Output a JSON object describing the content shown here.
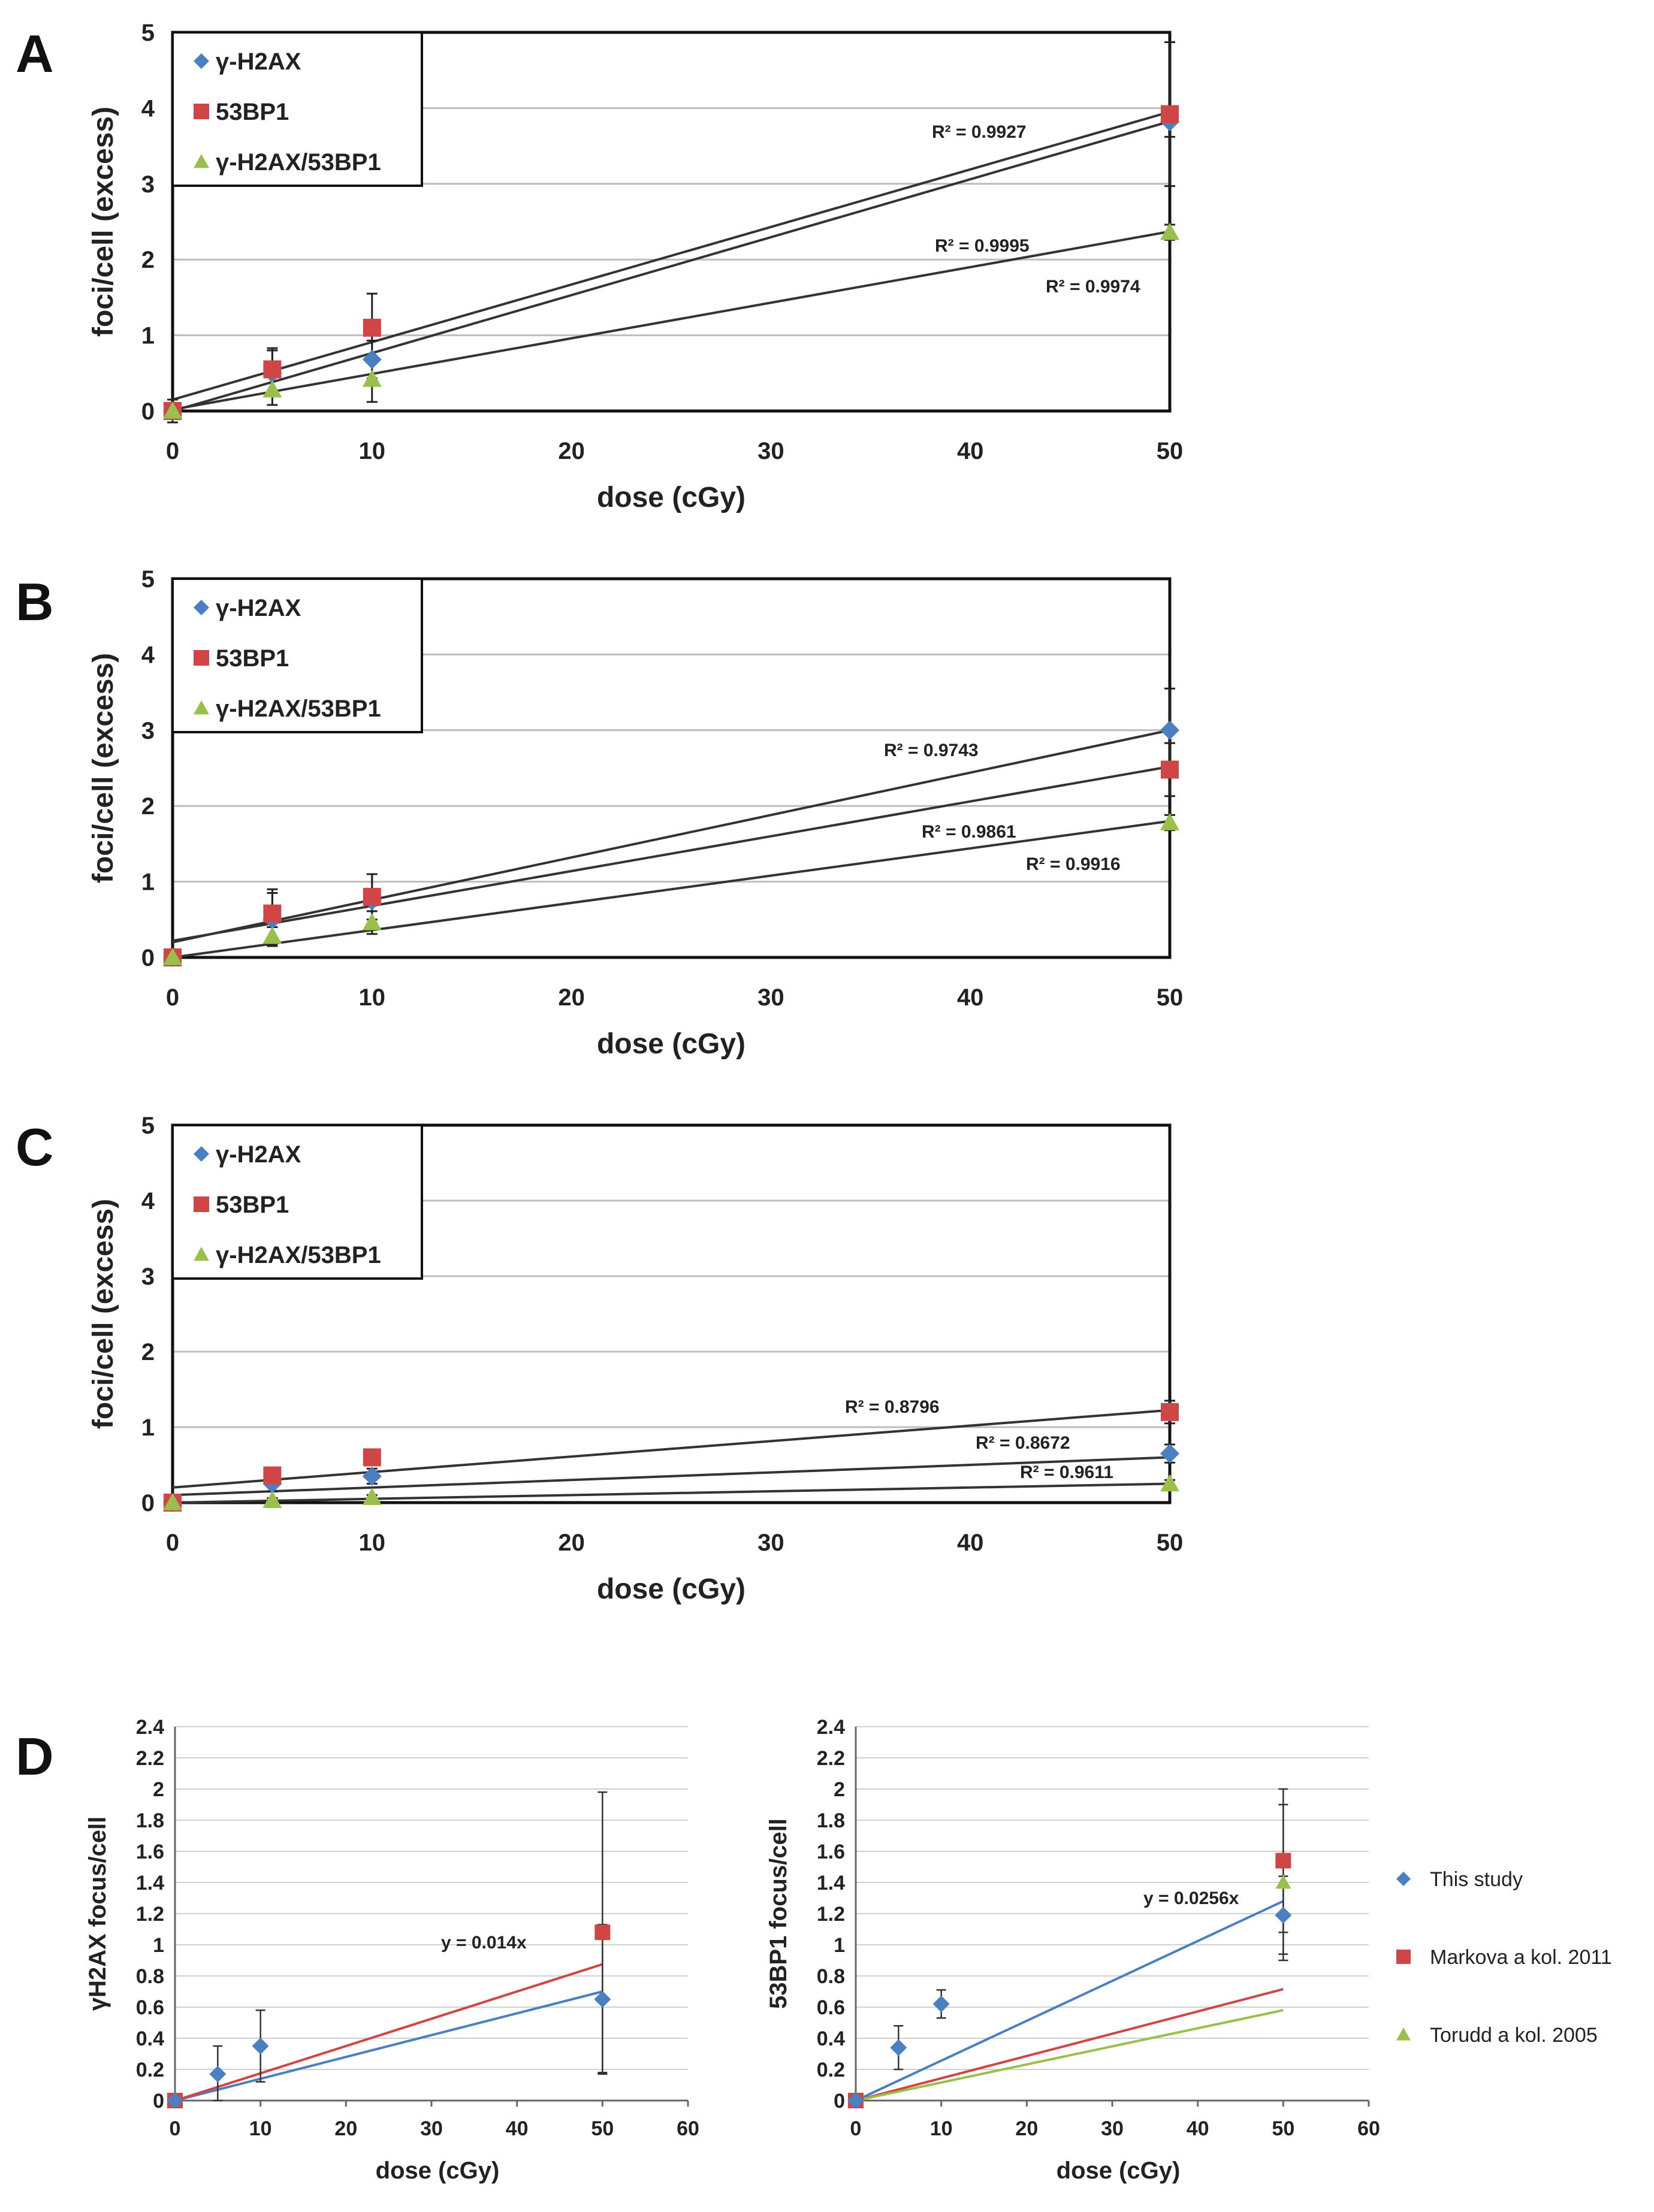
{
  "figure": {
    "panel_letters": [
      "A",
      "B",
      "C",
      "D"
    ]
  },
  "colors": {
    "gamma_h2ax": "#4a7fc1",
    "p53bp1": "#d04545",
    "overlap": "#98c04a",
    "fit_line": "#333333",
    "grid": "#bdbdbd"
  },
  "chart_data": [
    {
      "panel": "A",
      "type": "scatter",
      "xlabel": "dose (cGy)",
      "ylabel": "foci/cell (excess)",
      "xlim": [
        0,
        50
      ],
      "ylim": [
        0,
        5
      ],
      "xticks": [
        "0",
        "10",
        "20",
        "30",
        "40",
        "50"
      ],
      "yticks": [
        "0",
        "1",
        "2",
        "3",
        "4",
        "5"
      ],
      "legend": [
        "γ-H2AX",
        "53BP1",
        "γ-H2AX/53BP1"
      ],
      "series": [
        {
          "name": "γ-H2AX",
          "x": [
            0,
            5,
            10,
            50
          ],
          "y": [
            0,
            0.5,
            0.68,
            3.82
          ],
          "err": [
            0.15,
            0.3,
            0.25,
            0.2
          ],
          "fit": [
            0,
            0.0765
          ],
          "r2": "R² = 0.9995"
        },
        {
          "name": "53BP1",
          "x": [
            0,
            5,
            10,
            50
          ],
          "y": [
            0,
            0.55,
            1.1,
            3.92
          ],
          "err": [
            0.15,
            0.28,
            0.45,
            0.95
          ],
          "fit": [
            0.15,
            0.076
          ],
          "r2": "R² = 0.9927"
        },
        {
          "name": "γ-H2AX/53BP1",
          "x": [
            0,
            5,
            10,
            50
          ],
          "y": [
            0,
            0.28,
            0.42,
            2.36
          ],
          "err": [
            0.1,
            0.2,
            0.3,
            0.1
          ],
          "fit": [
            0.02,
            0.047
          ],
          "r2": "R² = 0.9974"
        }
      ]
    },
    {
      "panel": "B",
      "type": "scatter",
      "xlabel": "dose (cGy)",
      "ylabel": "foci/cell (excess)",
      "xlim": [
        0,
        50
      ],
      "ylim": [
        0,
        5
      ],
      "xticks": [
        "0",
        "10",
        "20",
        "30",
        "40",
        "50"
      ],
      "yticks": [
        "0",
        "1",
        "2",
        "3",
        "4",
        "5"
      ],
      "legend": [
        "γ-H2AX",
        "53BP1",
        "γ-H2AX/53BP1"
      ],
      "series": [
        {
          "name": "γ-H2AX",
          "x": [
            0,
            5,
            10,
            50
          ],
          "y": [
            0,
            0.5,
            0.75,
            3.0
          ],
          "err": [
            0.1,
            0.35,
            0.35,
            0.55
          ],
          "fit": [
            0.2,
            0.056
          ],
          "r2": "R² = 0.9743"
        },
        {
          "name": "53BP1",
          "x": [
            0,
            5,
            10,
            50
          ],
          "y": [
            0,
            0.58,
            0.8,
            2.48
          ],
          "err": [
            0.1,
            0.32,
            0.3,
            0.35
          ],
          "fit": [
            0.22,
            0.046
          ],
          "r2": "R² = 0.9861"
        },
        {
          "name": "γ-H2AX/53BP1",
          "x": [
            0,
            5,
            10,
            50
          ],
          "y": [
            0,
            0.28,
            0.46,
            1.78
          ],
          "err": [
            0.05,
            0.12,
            0.15,
            0.1
          ],
          "fit": [
            0,
            0.036
          ],
          "r2": "R² = 0.9916"
        }
      ]
    },
    {
      "panel": "C",
      "type": "scatter",
      "xlabel": "dose (cGy)",
      "ylabel": "foci/cell (excess)",
      "xlim": [
        0,
        50
      ],
      "ylim": [
        0,
        5
      ],
      "xticks": [
        "0",
        "10",
        "20",
        "30",
        "40",
        "50"
      ],
      "yticks": [
        "0",
        "1",
        "2",
        "3",
        "4",
        "5"
      ],
      "legend": [
        "γ-H2AX",
        "53BP1",
        "γ-H2AX/53BP1"
      ],
      "series": [
        {
          "name": "γ-H2AX",
          "x": [
            0,
            5,
            10,
            50
          ],
          "y": [
            0,
            0.25,
            0.35,
            0.65
          ],
          "err": [
            0.05,
            0.1,
            0.1,
            0.12
          ],
          "fit": [
            0.1,
            0.01
          ],
          "r2": "R² = 0.8672"
        },
        {
          "name": "53BP1",
          "x": [
            0,
            5,
            10,
            50
          ],
          "y": [
            0,
            0.36,
            0.6,
            1.2
          ],
          "err": [
            0.05,
            0.1,
            0.1,
            0.15
          ],
          "fit": [
            0.2,
            0.0205
          ],
          "r2": "R² = 0.8796"
        },
        {
          "name": "γ-H2AX/53BP1",
          "x": [
            0,
            5,
            10,
            50
          ],
          "y": [
            0,
            0.03,
            0.07,
            0.25
          ],
          "err": [
            0.02,
            0.03,
            0.03,
            0.05
          ],
          "fit": [
            0,
            0.005
          ],
          "r2": "R² = 0.9611"
        }
      ]
    },
    {
      "panel": "D-left",
      "type": "scatter",
      "xlabel": "dose (cGy)",
      "ylabel": "γH2AX focus/cell",
      "xlim": [
        0,
        60
      ],
      "ylim": [
        0,
        2.4
      ],
      "xticks": [
        "0",
        "10",
        "20",
        "30",
        "40",
        "50",
        "60"
      ],
      "yticks": [
        "0",
        "0.2",
        "0.4",
        "0.6",
        "0.8",
        "1",
        "1.2",
        "1.4",
        "1.6",
        "1.8",
        "2",
        "2.2",
        "2.4"
      ],
      "equation": "y = 0.014x",
      "series": [
        {
          "name": "This study",
          "x": [
            0,
            5,
            10,
            50
          ],
          "y": [
            0,
            0.17,
            0.35,
            0.65
          ],
          "err": [
            0,
            0.18,
            0.23,
            0.48
          ],
          "fit_slope": 0.014,
          "fit_color": "#4a7fc1"
        },
        {
          "name": "Markova a kol. 2011",
          "x": [
            0,
            50
          ],
          "y": [
            0,
            1.08
          ],
          "err": [
            0,
            0.9
          ],
          "fit_slope": 0.0175,
          "fit_color": "#d04545"
        }
      ]
    },
    {
      "panel": "D-right",
      "type": "scatter",
      "xlabel": "dose (cGy)",
      "ylabel": "53BP1 focus/cell",
      "xlim": [
        0,
        60
      ],
      "ylim": [
        0,
        2.4
      ],
      "xticks": [
        "0",
        "10",
        "20",
        "30",
        "40",
        "50",
        "60"
      ],
      "yticks": [
        "0",
        "0.2",
        "0.4",
        "0.6",
        "0.8",
        "1",
        "1.2",
        "1.4",
        "1.6",
        "1.8",
        "2",
        "2.2",
        "2.4"
      ],
      "equation": "y = 0.0256x",
      "legend": [
        "This study",
        "Markova a kol. 2011",
        "Torudd a kol. 2005"
      ],
      "series": [
        {
          "name": "This study",
          "x": [
            0,
            5,
            10,
            50
          ],
          "y": [
            0,
            0.34,
            0.62,
            1.19
          ],
          "err": [
            0,
            0.14,
            0.09,
            0.25
          ],
          "fit_slope": 0.0256,
          "fit_color": "#4a7fc1"
        },
        {
          "name": "Markova a kol. 2011",
          "x": [
            0,
            50
          ],
          "y": [
            0,
            1.54
          ],
          "err": [
            0,
            0.46
          ],
          "fit_slope": 0.0143,
          "fit_color": "#d04545"
        },
        {
          "name": "Torudd a kol. 2005",
          "x": [
            0,
            50
          ],
          "y": [
            0,
            1.4
          ],
          "err": [
            0,
            0.5
          ],
          "fit_slope": 0.0116,
          "fit_color": "#98c04a"
        }
      ]
    }
  ]
}
